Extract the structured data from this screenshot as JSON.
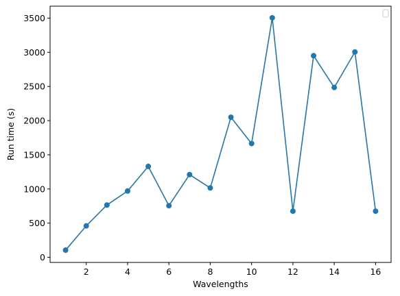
{
  "chart_data": {
    "type": "line",
    "xlabel": "Wavelengths",
    "ylabel": "Run time (s)",
    "xlim": [
      0.25,
      16.75
    ],
    "ylim": [
      -75,
      3675
    ],
    "xticks": [
      2,
      4,
      6,
      8,
      10,
      12,
      14,
      16
    ],
    "yticks": [
      0,
      500,
      1000,
      1500,
      2000,
      2500,
      3000,
      3500
    ],
    "grid": false,
    "legend": "top-right (empty)",
    "series": [
      {
        "color": "#1f77b4",
        "marker": "circle",
        "x": [
          1,
          2,
          3,
          4,
          5,
          6,
          7,
          8,
          9,
          10,
          11,
          12,
          13,
          14,
          15,
          16
        ],
        "y": [
          105,
          460,
          765,
          970,
          1330,
          755,
          1210,
          1015,
          2050,
          1665,
          3505,
          675,
          2950,
          2485,
          3005,
          675
        ]
      }
    ]
  }
}
